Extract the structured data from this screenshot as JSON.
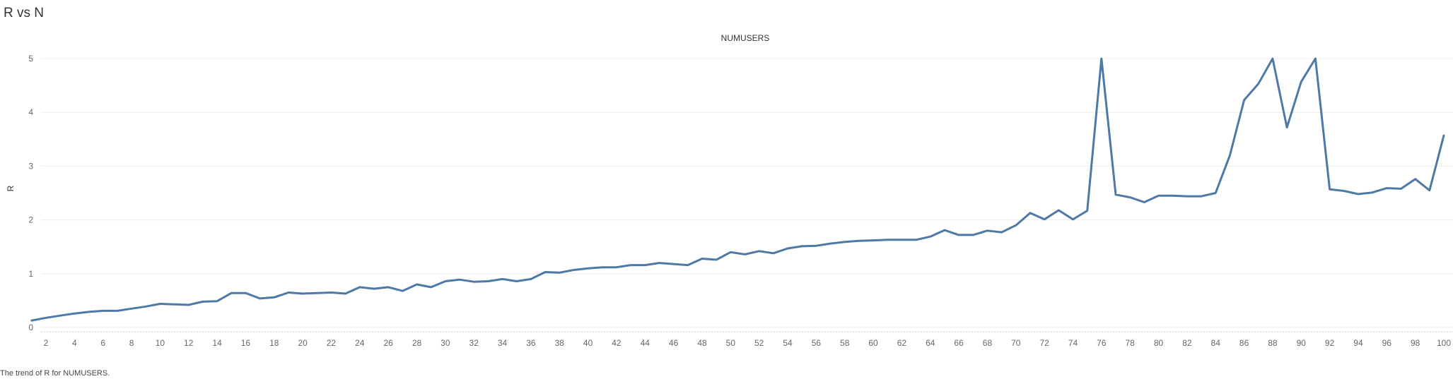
{
  "dashboard": {
    "title": "R vs N",
    "caption": "The trend of R for NUMUSERS."
  },
  "chart_data": {
    "type": "line",
    "title": "NUMUSERS",
    "xlabel": "",
    "ylabel": "R",
    "xlim": [
      1,
      100
    ],
    "ylim": [
      0,
      5
    ],
    "yticks": [
      "0",
      "1",
      "2",
      "3",
      "4",
      "5"
    ],
    "xticks": [
      "2",
      "4",
      "6",
      "8",
      "10",
      "12",
      "14",
      "16",
      "18",
      "20",
      "22",
      "24",
      "26",
      "28",
      "30",
      "32",
      "34",
      "36",
      "38",
      "40",
      "42",
      "44",
      "46",
      "48",
      "50",
      "52",
      "54",
      "56",
      "58",
      "60",
      "62",
      "64",
      "66",
      "68",
      "70",
      "72",
      "74",
      "76",
      "78",
      "80",
      "82",
      "84",
      "86",
      "88",
      "90",
      "92",
      "94",
      "96",
      "98",
      "100"
    ],
    "grid": true,
    "line_color": "#4e79a7",
    "series": [
      {
        "x": [
          1,
          2,
          3,
          4,
          5,
          6,
          7,
          8,
          9,
          10,
          11,
          12,
          13,
          14,
          15,
          16,
          17,
          18,
          19,
          20,
          21,
          22,
          23,
          24,
          25,
          26,
          27,
          28,
          29,
          30,
          31,
          32,
          33,
          34,
          35,
          36,
          37,
          38,
          39,
          40,
          41,
          42,
          43,
          44,
          45,
          46,
          47,
          48,
          49,
          50,
          51,
          52,
          53,
          54,
          55,
          56,
          57,
          58,
          59,
          60,
          61,
          62,
          63,
          64,
          65,
          66,
          67,
          68,
          69,
          70,
          71,
          72,
          73,
          74,
          75,
          76,
          77,
          78,
          79,
          80,
          81,
          82,
          83,
          84,
          85,
          86,
          87,
          88,
          89,
          90,
          91,
          92,
          93,
          94,
          95,
          96,
          97,
          98,
          99,
          100
        ],
        "values": [
          0.13,
          0.18,
          0.22,
          0.26,
          0.29,
          0.31,
          0.31,
          0.35,
          0.39,
          0.44,
          0.43,
          0.42,
          0.48,
          0.49,
          0.64,
          0.64,
          0.54,
          0.56,
          0.65,
          0.63,
          0.64,
          0.65,
          0.63,
          0.75,
          0.72,
          0.75,
          0.68,
          0.8,
          0.75,
          0.86,
          0.89,
          0.85,
          0.86,
          0.9,
          0.86,
          0.9,
          1.03,
          1.02,
          1.07,
          1.1,
          1.12,
          1.12,
          1.16,
          1.16,
          1.2,
          1.18,
          1.16,
          1.28,
          1.26,
          1.4,
          1.36,
          1.42,
          1.38,
          1.47,
          1.51,
          1.52,
          1.56,
          1.59,
          1.61,
          1.62,
          1.63,
          1.63,
          1.63,
          1.69,
          1.81,
          1.72,
          1.72,
          1.8,
          1.77,
          1.9,
          2.13,
          2.01,
          2.18,
          2.01,
          2.17,
          5.0,
          2.47,
          2.42,
          2.33,
          2.45,
          2.45,
          2.44,
          2.44,
          2.5,
          3.2,
          4.23,
          4.53,
          5.0,
          3.72,
          4.57,
          5.0,
          2.57,
          2.54,
          2.48,
          2.51,
          2.59,
          2.58,
          2.76,
          2.55,
          3.57
        ]
      }
    ]
  }
}
